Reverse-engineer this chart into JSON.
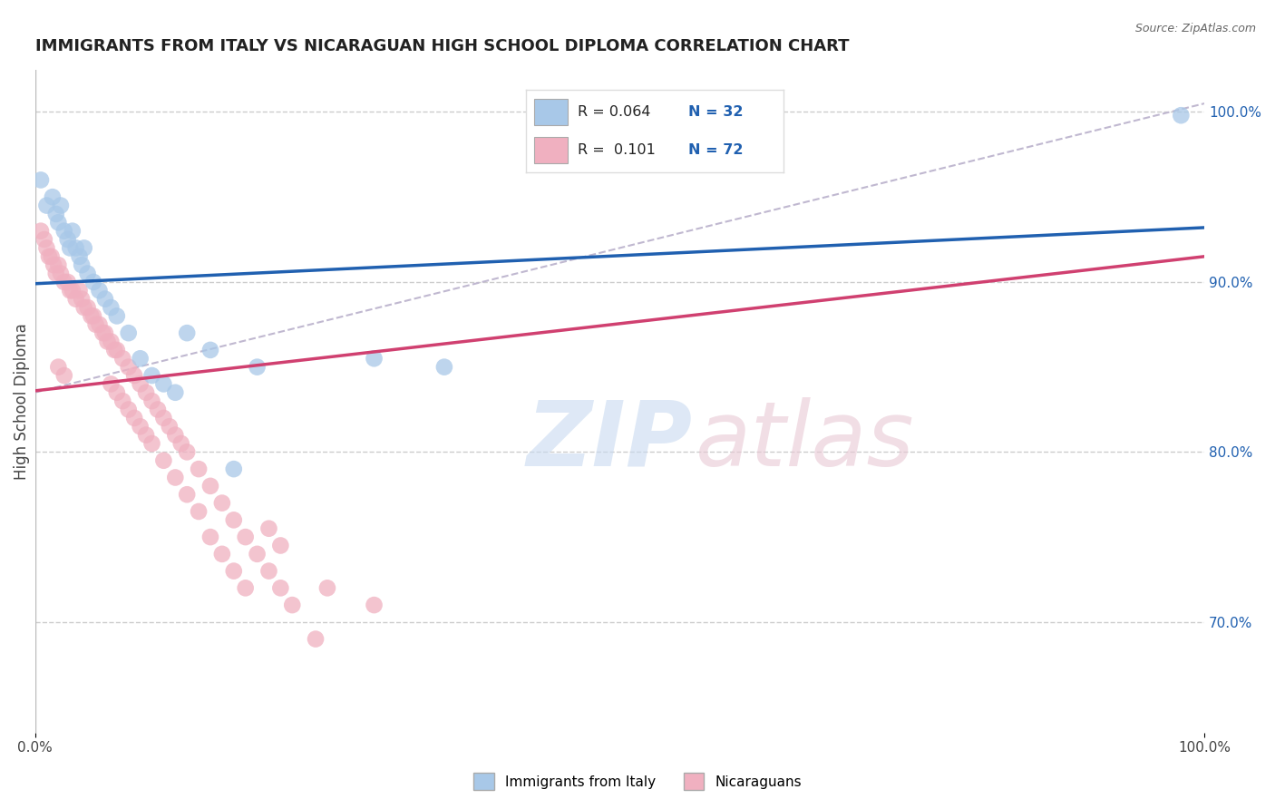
{
  "title": "IMMIGRANTS FROM ITALY VS NICARAGUAN HIGH SCHOOL DIPLOMA CORRELATION CHART",
  "source_text": "Source: ZipAtlas.com",
  "ylabel": "High School Diploma",
  "xlim": [
    0.0,
    1.0
  ],
  "ylim": [
    0.635,
    1.025
  ],
  "y_ticks_right": [
    0.7,
    0.8,
    0.9,
    1.0
  ],
  "y_tick_labels_right": [
    "70.0%",
    "80.0%",
    "90.0%",
    "100.0%"
  ],
  "legend_label1": "Immigrants from Italy",
  "legend_label2": "Nicaraguans",
  "blue_color": "#a8c8e8",
  "pink_color": "#f0b0c0",
  "blue_line_color": "#2060b0",
  "pink_line_color": "#d04070",
  "diag_color": "#c0b8d0",
  "grid_color": "#cccccc",
  "blue_line_start_y": 0.899,
  "blue_line_end_y": 0.932,
  "pink_line_start_y": 0.836,
  "pink_line_end_y": 0.915,
  "diag_line_start_y": 0.835,
  "diag_line_end_y": 1.005,
  "blue_dots_x": [
    0.005,
    0.01,
    0.015,
    0.018,
    0.02,
    0.022,
    0.025,
    0.028,
    0.03,
    0.032,
    0.035,
    0.038,
    0.04,
    0.042,
    0.045,
    0.05,
    0.055,
    0.06,
    0.065,
    0.07,
    0.08,
    0.09,
    0.1,
    0.11,
    0.12,
    0.13,
    0.15,
    0.17,
    0.19,
    0.29,
    0.35,
    0.98
  ],
  "blue_dots_y": [
    0.96,
    0.945,
    0.95,
    0.94,
    0.935,
    0.945,
    0.93,
    0.925,
    0.92,
    0.93,
    0.92,
    0.915,
    0.91,
    0.92,
    0.905,
    0.9,
    0.895,
    0.89,
    0.885,
    0.88,
    0.87,
    0.855,
    0.845,
    0.84,
    0.835,
    0.87,
    0.86,
    0.79,
    0.85,
    0.855,
    0.85,
    0.998
  ],
  "pink_dots_x": [
    0.005,
    0.008,
    0.01,
    0.012,
    0.014,
    0.016,
    0.018,
    0.02,
    0.022,
    0.025,
    0.028,
    0.03,
    0.032,
    0.035,
    0.038,
    0.04,
    0.042,
    0.045,
    0.048,
    0.05,
    0.052,
    0.055,
    0.058,
    0.06,
    0.062,
    0.065,
    0.068,
    0.07,
    0.075,
    0.08,
    0.085,
    0.09,
    0.095,
    0.1,
    0.105,
    0.11,
    0.115,
    0.12,
    0.125,
    0.13,
    0.14,
    0.15,
    0.16,
    0.17,
    0.18,
    0.19,
    0.2,
    0.21,
    0.22,
    0.24,
    0.065,
    0.07,
    0.075,
    0.08,
    0.085,
    0.09,
    0.095,
    0.1,
    0.11,
    0.12,
    0.13,
    0.14,
    0.2,
    0.21,
    0.15,
    0.16,
    0.17,
    0.18,
    0.25,
    0.29,
    0.02,
    0.025
  ],
  "pink_dots_y": [
    0.93,
    0.925,
    0.92,
    0.915,
    0.915,
    0.91,
    0.905,
    0.91,
    0.905,
    0.9,
    0.9,
    0.895,
    0.895,
    0.89,
    0.895,
    0.89,
    0.885,
    0.885,
    0.88,
    0.88,
    0.875,
    0.875,
    0.87,
    0.87,
    0.865,
    0.865,
    0.86,
    0.86,
    0.855,
    0.85,
    0.845,
    0.84,
    0.835,
    0.83,
    0.825,
    0.82,
    0.815,
    0.81,
    0.805,
    0.8,
    0.79,
    0.78,
    0.77,
    0.76,
    0.75,
    0.74,
    0.73,
    0.72,
    0.71,
    0.69,
    0.84,
    0.835,
    0.83,
    0.825,
    0.82,
    0.815,
    0.81,
    0.805,
    0.795,
    0.785,
    0.775,
    0.765,
    0.755,
    0.745,
    0.75,
    0.74,
    0.73,
    0.72,
    0.72,
    0.71,
    0.85,
    0.845
  ]
}
